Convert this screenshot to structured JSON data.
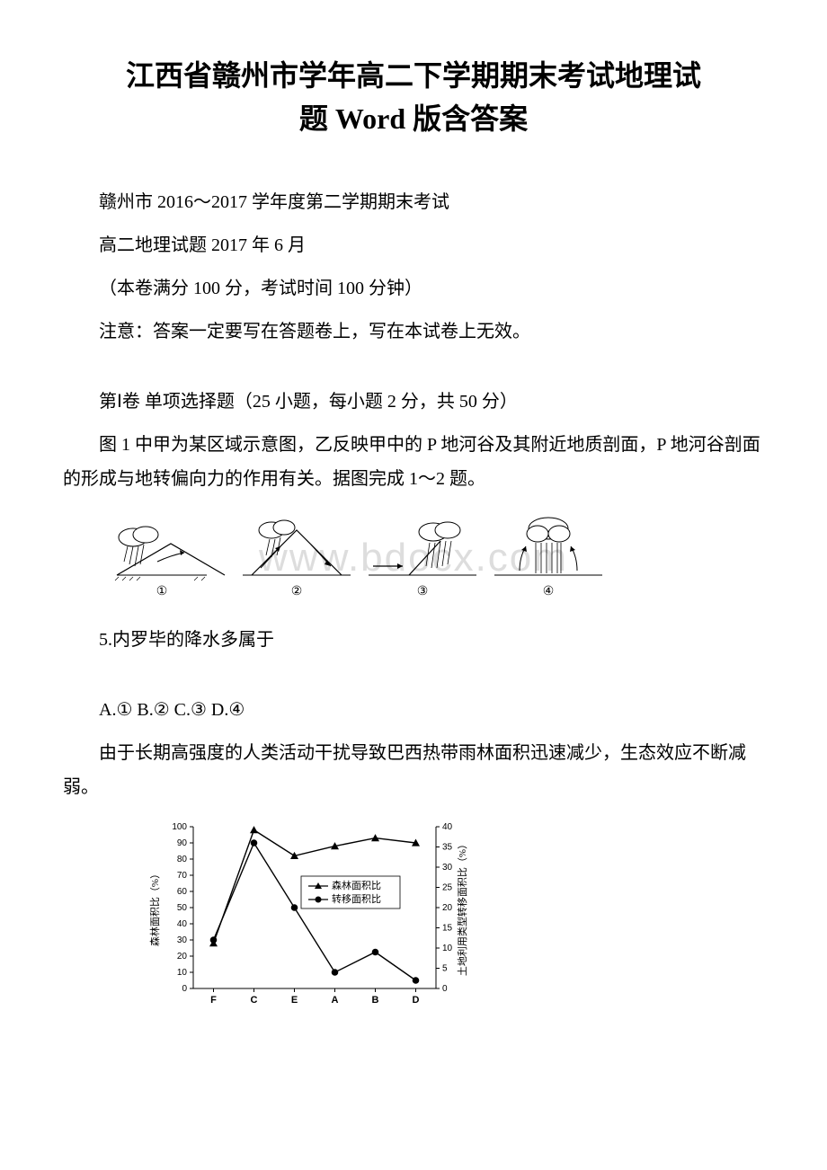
{
  "title_line1": "江西省赣州市学年高二下学期期末考试地理试",
  "title_line2": "题 Word 版含答案",
  "para1": "赣州市 2016～2017 学年度第二学期期末考试",
  "para2": "高二地理试题 2017 年 6 月",
  "para3": "（本卷满分 100 分，考试时间 100 分钟）",
  "para4": "注意：答案一定要写在答题卷上，写在本试卷上无效。",
  "para5": "第Ⅰ卷 单项选择题（25 小题，每小题 2 分，共 50 分）",
  "para6": "图 1 中甲为某区域示意图，乙反映甲中的 P 地河谷及其附近地质剖面，P 地河谷剖面 的形成与地转偏向力的作用有关。据图完成 1～2 题。",
  "watermark_text": "www.bdocx.com",
  "q5": "5.内罗毕的降水多属于",
  "q5_options": "A.① B.② C.③ D.④",
  "para7": "由于长期高强度的人类活动干扰导致巴西热带雨林面积迅速减少，生态效应不断减弱。",
  "precip_diagram": {
    "labels": [
      "①",
      "②",
      "③",
      "④"
    ]
  },
  "chart": {
    "type": "line",
    "y1_label": "森林面积比（%）",
    "y2_label": "土地利用类型转移面积比（%）",
    "y1_ticks": [
      0,
      10,
      20,
      30,
      40,
      50,
      60,
      70,
      80,
      90,
      100
    ],
    "y2_ticks": [
      0,
      5,
      10,
      15,
      20,
      25,
      30,
      35,
      40
    ],
    "x_categories": [
      "F",
      "C",
      "E",
      "A",
      "B",
      "D"
    ],
    "series1_name": "森林面积比",
    "series2_name": "转移面积比",
    "series1_values": [
      28,
      98,
      82,
      88,
      93,
      90
    ],
    "series2_values": [
      12,
      36,
      20,
      4,
      9,
      2
    ],
    "y1_lim": [
      0,
      100
    ],
    "y2_lim": [
      0,
      40
    ],
    "line_color": "#000000",
    "background_color": "#ffffff",
    "marker1": "triangle",
    "marker2": "circle",
    "label_fontsize": 11
  }
}
